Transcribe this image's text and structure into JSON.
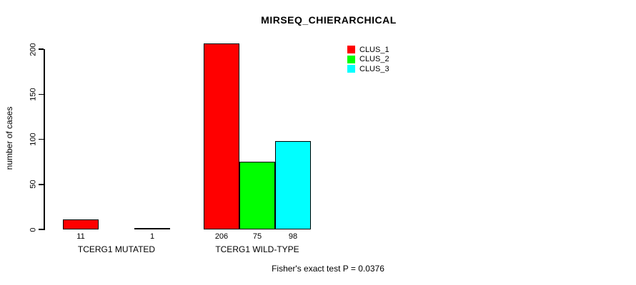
{
  "chart_data": {
    "type": "bar",
    "title": "MIRSEQ_CHIERARCHICAL",
    "ylabel": "number of cases",
    "ylim": [
      0,
      200
    ],
    "yticks": [
      0,
      50,
      100,
      150,
      200
    ],
    "grid": false,
    "legend_position": "top-right",
    "legend": [
      {
        "name": "CLUS_1",
        "color": "#FF0000"
      },
      {
        "name": "CLUS_2",
        "color": "#00FF00"
      },
      {
        "name": "CLUS_3",
        "color": "#00FFFF"
      }
    ],
    "categories": [
      "TCERG1 MUTATED",
      "TCERG1 WILD-TYPE"
    ],
    "groups": [
      {
        "label": "TCERG1 MUTATED",
        "values": [
          11,
          0,
          1
        ],
        "value_labels": [
          "11",
          "",
          "1"
        ]
      },
      {
        "label": "TCERG1 WILD-TYPE",
        "values": [
          206,
          75,
          98
        ],
        "value_labels": [
          "206",
          "75",
          "98"
        ]
      }
    ],
    "footnote": "Fisher's exact test P = 0.0376"
  }
}
